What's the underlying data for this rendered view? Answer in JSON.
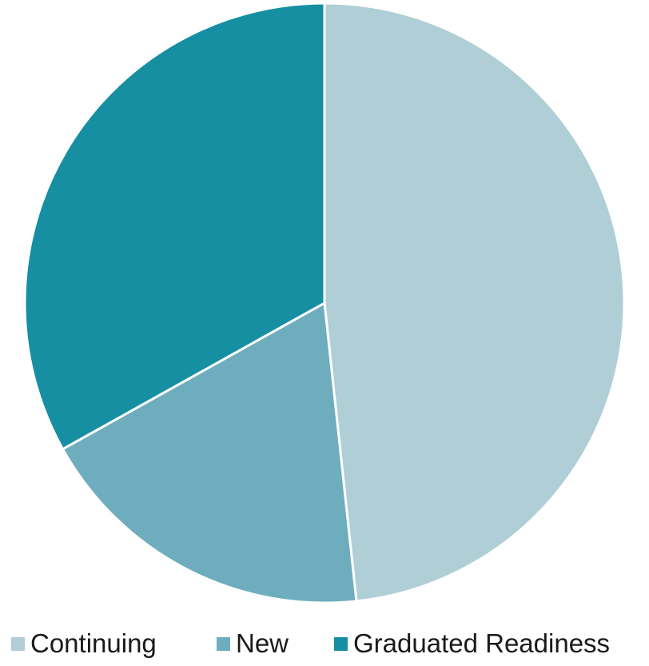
{
  "chart_data": {
    "type": "pie",
    "title": "",
    "categories": [
      "Continuing",
      "New",
      "Graduated Readiness"
    ],
    "values": [
      48.3,
      18.6,
      33.1
    ],
    "colors": [
      "#b0ced6",
      "#6eadbe",
      "#168fa3"
    ],
    "start_angle": "12 o'clock",
    "direction": "clockwise",
    "legend_position": "bottom"
  }
}
